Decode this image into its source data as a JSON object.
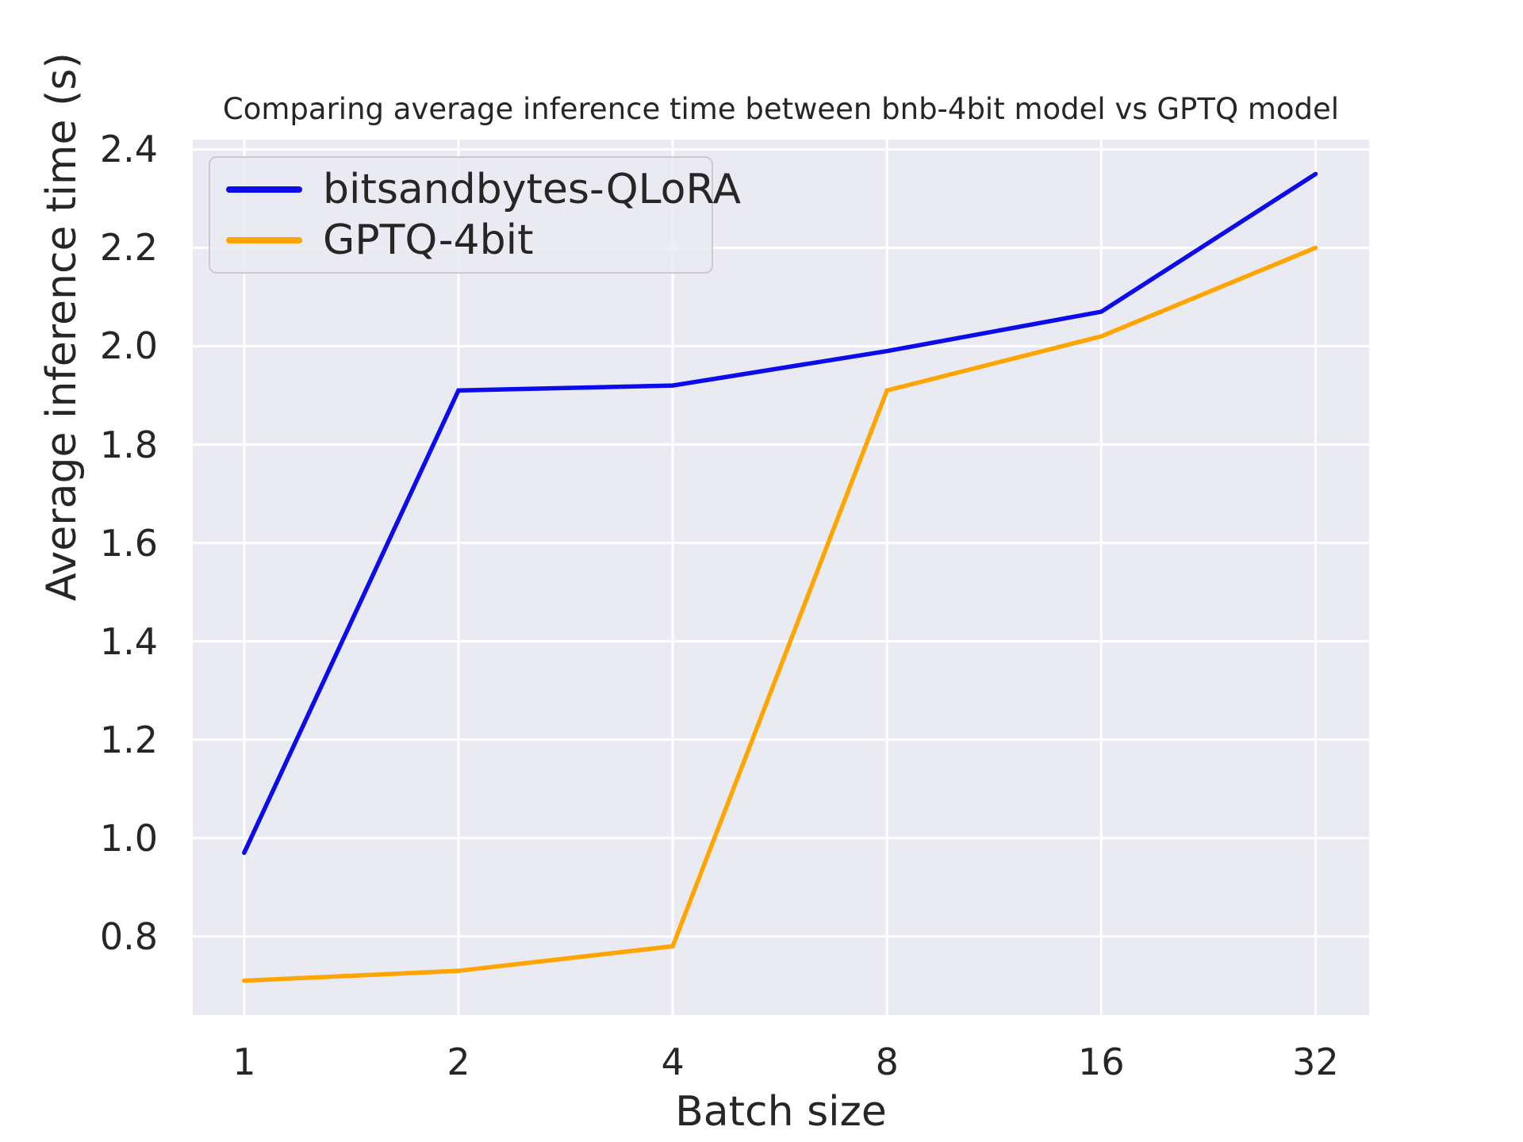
{
  "chart_data": {
    "type": "line",
    "title": "Comparing average inference time between bnb-4bit model vs GPTQ model",
    "xlabel": "Batch size",
    "ylabel": "Average inference time (s)",
    "categories": [
      "1",
      "2",
      "4",
      "8",
      "16",
      "32"
    ],
    "x_scale": "log2 (ticks evenly spaced)",
    "series": [
      {
        "name": "bitsandbytes-QLoRA",
        "color": "#0b0beb",
        "values": [
          0.97,
          1.91,
          1.92,
          1.99,
          2.07,
          2.35
        ]
      },
      {
        "name": "GPTQ-4bit",
        "color": "#ffa500",
        "values": [
          0.71,
          0.73,
          0.78,
          1.91,
          2.02,
          2.2
        ]
      }
    ],
    "ytick_labels": [
      "0.8",
      "1.0",
      "1.2",
      "1.4",
      "1.6",
      "1.8",
      "2.0",
      "2.2",
      "2.4"
    ],
    "ytick_values": [
      0.8,
      1.0,
      1.2,
      1.4,
      1.6,
      1.8,
      2.0,
      2.2,
      2.4
    ],
    "ylim": [
      0.64,
      2.42
    ],
    "x_index_lim": [
      -0.24,
      5.25
    ],
    "grid": true,
    "legend_position": "upper-left",
    "colors": {
      "plot_background": "#eaeaf2",
      "gridline": "#ffffff",
      "text": "#262626",
      "legend_border": "#cbcbcb"
    }
  }
}
